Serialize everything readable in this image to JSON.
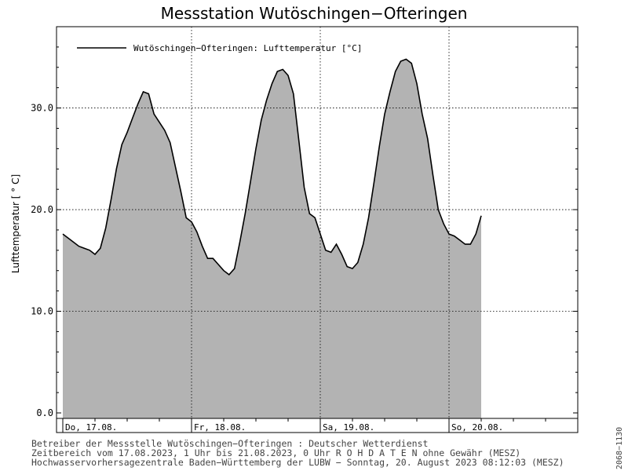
{
  "chart_data": {
    "type": "area",
    "title": "Messstation Wutöschingen−Ofteringen",
    "ylabel": "Lufttemperatur [ ° C]",
    "xlabel": "",
    "ylim": [
      0,
      38
    ],
    "xlim": [
      "2023-08-17 00:00",
      "2023-08-21 00:00"
    ],
    "y_ticks": [
      "0.0",
      "10.0",
      "20.0",
      "30.0"
    ],
    "x_ticks": [
      "Do, 17.08.",
      "Fr, 18.08.",
      "Sa, 19.08.",
      "So, 20.08."
    ],
    "legend": "Wutöschingen−Ofteringen: Lufttemperatur [°C]",
    "legend_position": "top-left",
    "grid": true,
    "fill_color": "#b3b3b3",
    "line_color": "#000000",
    "series": [
      {
        "name": "Wutöschingen−Ofteringen: Lufttemperatur [°C]",
        "points": [
          [
            "2023-08-17 00:00",
            17.6
          ],
          [
            "2023-08-17 01:00",
            17.2
          ],
          [
            "2023-08-17 02:00",
            16.8
          ],
          [
            "2023-08-17 03:00",
            16.4
          ],
          [
            "2023-08-17 04:00",
            16.2
          ],
          [
            "2023-08-17 05:00",
            16.0
          ],
          [
            "2023-08-17 06:00",
            15.6
          ],
          [
            "2023-08-17 07:00",
            16.2
          ],
          [
            "2023-08-17 08:00",
            18.2
          ],
          [
            "2023-08-17 09:00",
            21.0
          ],
          [
            "2023-08-17 10:00",
            24.0
          ],
          [
            "2023-08-17 11:00",
            26.4
          ],
          [
            "2023-08-17 12:00",
            27.6
          ],
          [
            "2023-08-17 13:00",
            29.0
          ],
          [
            "2023-08-17 14:00",
            30.4
          ],
          [
            "2023-08-17 15:00",
            31.6
          ],
          [
            "2023-08-17 16:00",
            31.4
          ],
          [
            "2023-08-17 17:00",
            29.4
          ],
          [
            "2023-08-17 18:00",
            28.6
          ],
          [
            "2023-08-17 19:00",
            27.8
          ],
          [
            "2023-08-17 20:00",
            26.6
          ],
          [
            "2023-08-17 21:00",
            24.2
          ],
          [
            "2023-08-17 22:00",
            21.8
          ],
          [
            "2023-08-17 23:00",
            19.2
          ],
          [
            "2023-08-18 00:00",
            18.8
          ],
          [
            "2023-08-18 01:00",
            17.8
          ],
          [
            "2023-08-18 02:00",
            16.4
          ],
          [
            "2023-08-18 03:00",
            15.2
          ],
          [
            "2023-08-18 04:00",
            15.2
          ],
          [
            "2023-08-18 05:00",
            14.6
          ],
          [
            "2023-08-18 06:00",
            14.0
          ],
          [
            "2023-08-18 07:00",
            13.6
          ],
          [
            "2023-08-18 08:00",
            14.2
          ],
          [
            "2023-08-18 09:00",
            16.8
          ],
          [
            "2023-08-18 10:00",
            19.6
          ],
          [
            "2023-08-18 11:00",
            22.8
          ],
          [
            "2023-08-18 12:00",
            26.0
          ],
          [
            "2023-08-18 13:00",
            28.8
          ],
          [
            "2023-08-18 14:00",
            30.8
          ],
          [
            "2023-08-18 15:00",
            32.4
          ],
          [
            "2023-08-18 16:00",
            33.6
          ],
          [
            "2023-08-18 17:00",
            33.8
          ],
          [
            "2023-08-18 18:00",
            33.2
          ],
          [
            "2023-08-18 19:00",
            31.4
          ],
          [
            "2023-08-18 20:00",
            26.8
          ],
          [
            "2023-08-18 21:00",
            22.2
          ],
          [
            "2023-08-18 22:00",
            19.6
          ],
          [
            "2023-08-18 23:00",
            19.2
          ],
          [
            "2023-08-19 00:00",
            17.6
          ],
          [
            "2023-08-19 01:00",
            16.0
          ],
          [
            "2023-08-19 02:00",
            15.8
          ],
          [
            "2023-08-19 03:00",
            16.6
          ],
          [
            "2023-08-19 04:00",
            15.6
          ],
          [
            "2023-08-19 05:00",
            14.4
          ],
          [
            "2023-08-19 06:00",
            14.2
          ],
          [
            "2023-08-19 07:00",
            14.8
          ],
          [
            "2023-08-19 08:00",
            16.6
          ],
          [
            "2023-08-19 09:00",
            19.2
          ],
          [
            "2023-08-19 10:00",
            22.6
          ],
          [
            "2023-08-19 11:00",
            26.2
          ],
          [
            "2023-08-19 12:00",
            29.4
          ],
          [
            "2023-08-19 13:00",
            31.6
          ],
          [
            "2023-08-19 14:00",
            33.6
          ],
          [
            "2023-08-19 15:00",
            34.6
          ],
          [
            "2023-08-19 16:00",
            34.8
          ],
          [
            "2023-08-19 17:00",
            34.4
          ],
          [
            "2023-08-19 18:00",
            32.4
          ],
          [
            "2023-08-19 19:00",
            29.4
          ],
          [
            "2023-08-19 20:00",
            27.0
          ],
          [
            "2023-08-19 21:00",
            23.4
          ],
          [
            "2023-08-19 22:00",
            20.0
          ],
          [
            "2023-08-19 23:00",
            18.6
          ],
          [
            "2023-08-20 00:00",
            17.6
          ],
          [
            "2023-08-20 01:00",
            17.4
          ],
          [
            "2023-08-20 02:00",
            17.0
          ],
          [
            "2023-08-20 03:00",
            16.6
          ],
          [
            "2023-08-20 04:00",
            16.6
          ],
          [
            "2023-08-20 05:00",
            17.6
          ],
          [
            "2023-08-20 06:00",
            19.4
          ]
        ]
      }
    ]
  },
  "footer": {
    "line1": "Betreiber der Messstelle Wutöschingen−Ofteringen : Deutscher Wetterdienst",
    "line2": "Zeitbereich vom 17.08.2023, 1 Uhr bis 21.08.2023, 0 Uhr   R O H D A T E N ohne Gewähr (MESZ)",
    "line3": "Hochwasservorhersagezentrale Baden−Württemberg der LUBW − Sonntag, 20. August 2023 08:12:03 (MESZ)",
    "side_id": "2068−1130"
  }
}
